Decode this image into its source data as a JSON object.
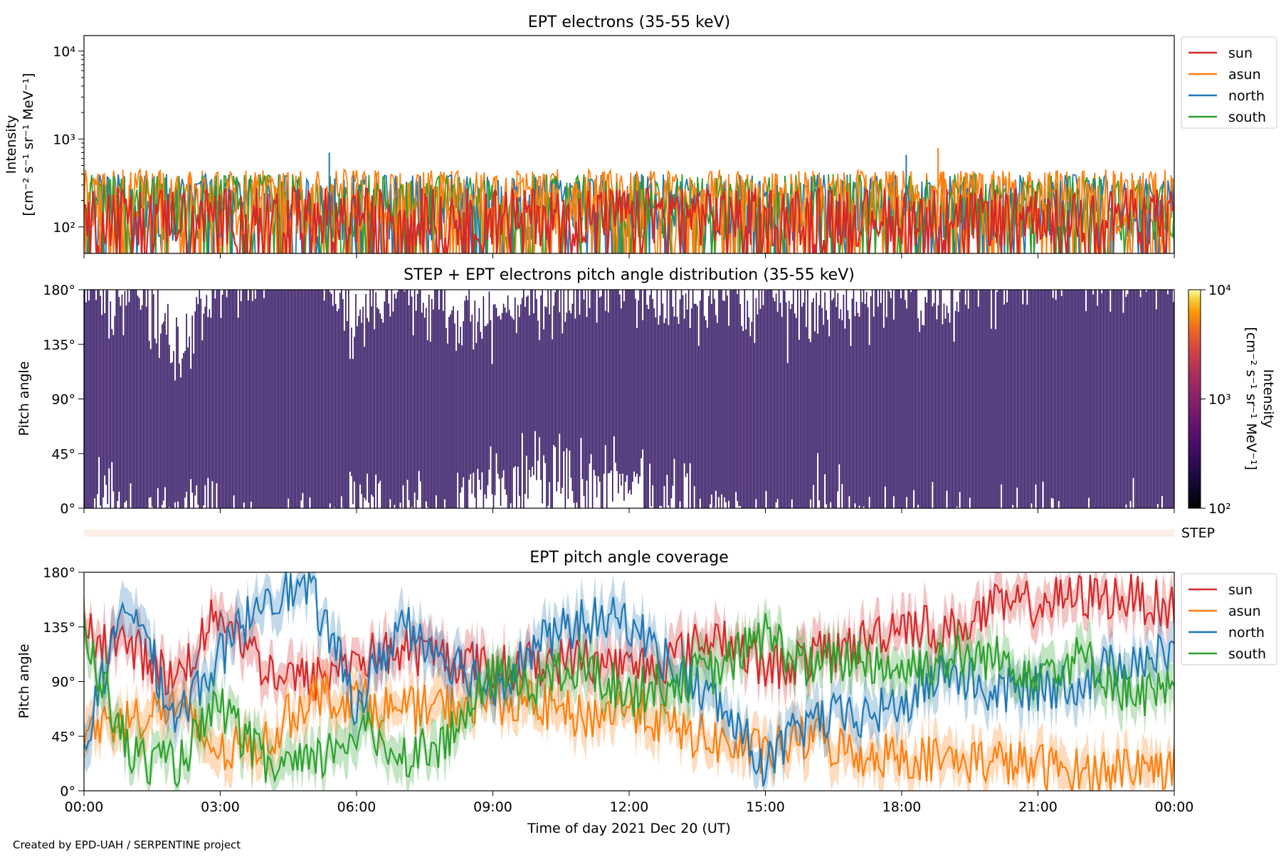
{
  "footer": {
    "credit": "Created by EPD-UAH / SERPENTINE project"
  },
  "colors": {
    "sun": "#d62728",
    "asun": "#ff7f0e",
    "north": "#1f77b4",
    "south": "#2ca02c",
    "pad": "#2e0f5f",
    "step_strip": "#fdeee8"
  },
  "chart_data": [
    {
      "type": "line",
      "title": "EPT electrons (35-55 keV)",
      "ylabel_line1": "Intensity",
      "ylabel_line2": "[cm⁻² s⁻¹ sr⁻¹ MeV⁻¹]",
      "yscale": "log",
      "ylim": [
        50,
        15000
      ],
      "yticks": [
        {
          "value": 100,
          "label": "10²"
        },
        {
          "value": 1000,
          "label": "10³"
        },
        {
          "value": 10000,
          "label": "10⁴"
        }
      ],
      "x_hours": [
        0,
        3,
        6,
        9,
        12,
        15,
        18,
        21,
        24
      ],
      "legend_position": "outside-right",
      "series": [
        {
          "name": "sun",
          "typical_range": [
            60,
            280
          ],
          "color_key": "sun"
        },
        {
          "name": "asun",
          "typical_range": [
            80,
            450
          ],
          "color_key": "asun"
        },
        {
          "name": "north",
          "typical_range": [
            70,
            400
          ],
          "color_key": "north"
        },
        {
          "name": "south",
          "typical_range": [
            70,
            400
          ],
          "color_key": "south"
        }
      ],
      "spikes": [
        {
          "x_hour": 5.4,
          "y": 700,
          "series": "north"
        },
        {
          "x_hour": 18.8,
          "y": 790,
          "series": "asun"
        },
        {
          "x_hour": 18.1,
          "y": 660,
          "series": "north"
        }
      ]
    },
    {
      "type": "heatmap",
      "title": "STEP + EPT electrons pitch angle distribution (35-55 keV)",
      "ylabel": "Pitch angle",
      "ylim": [
        0,
        180
      ],
      "yticks": [
        "0°",
        "45°",
        "90°",
        "135°",
        "180°"
      ],
      "x_hours": [
        0,
        3,
        6,
        9,
        12,
        15,
        18,
        21,
        24
      ],
      "colorbar": {
        "label_line1": "Intensity",
        "label_line2": "[cm⁻² s⁻¹ sr⁻¹ MeV⁻¹]",
        "scale": "log",
        "range": [
          100,
          10000
        ],
        "ticks": [
          "10²",
          "10³",
          "10⁴"
        ],
        "colormap": "inferno"
      }
    },
    {
      "type": "strip",
      "label": "STEP"
    },
    {
      "type": "line",
      "title": "EPT pitch angle coverage",
      "ylabel": "Pitch angle",
      "xlabel": "Time of day 2021 Dec 20 (UT)",
      "ylim": [
        0,
        180
      ],
      "yticks": [
        {
          "value": 0,
          "label": "0°"
        },
        {
          "value": 45,
          "label": "45°"
        },
        {
          "value": 90,
          "label": "90°"
        },
        {
          "value": 135,
          "label": "135°"
        },
        {
          "value": 180,
          "label": "180°"
        }
      ],
      "categories": [
        "00:00",
        "03:00",
        "06:00",
        "09:00",
        "12:00",
        "15:00",
        "18:00",
        "21:00",
        "00:00"
      ],
      "x_hours": [
        0,
        3,
        6,
        9,
        12,
        15,
        18,
        21,
        24
      ],
      "legend_position": "outside-right",
      "series": [
        {
          "name": "sun",
          "color_key": "sun",
          "x": [
            0,
            1,
            2,
            3,
            4,
            5,
            6,
            7,
            8,
            9,
            10,
            11,
            12,
            13,
            14,
            15,
            16,
            17,
            18,
            19,
            20,
            21,
            22,
            23,
            24
          ],
          "y": [
            130,
            120,
            90,
            150,
            100,
            90,
            110,
            115,
            110,
            100,
            105,
            110,
            100,
            110,
            130,
            100,
            110,
            120,
            140,
            130,
            150,
            155,
            160,
            160,
            150
          ]
        },
        {
          "name": "asun",
          "color_key": "asun",
          "x": [
            0,
            1,
            2,
            3,
            4,
            5,
            6,
            7,
            8,
            9,
            10,
            11,
            12,
            13,
            14,
            15,
            16,
            17,
            18,
            19,
            20,
            21,
            22,
            23,
            24
          ],
          "y": [
            50,
            60,
            70,
            30,
            40,
            80,
            75,
            65,
            70,
            75,
            70,
            60,
            70,
            50,
            40,
            30,
            45,
            30,
            30,
            25,
            25,
            20,
            15,
            20,
            20
          ]
        },
        {
          "name": "north",
          "color_key": "north",
          "x": [
            0,
            1,
            2,
            3,
            4,
            5,
            6,
            7,
            8,
            9,
            10,
            11,
            12,
            13,
            14,
            15,
            16,
            17,
            18,
            19,
            20,
            21,
            22,
            23,
            24
          ],
          "y": [
            40,
            160,
            60,
            110,
            165,
            165,
            70,
            140,
            110,
            85,
            120,
            140,
            140,
            100,
            70,
            20,
            60,
            60,
            70,
            100,
            80,
            85,
            90,
            110,
            110
          ]
        },
        {
          "name": "south",
          "color_key": "south",
          "x": [
            0,
            1,
            2,
            3,
            4,
            5,
            6,
            7,
            8,
            9,
            10,
            11,
            12,
            13,
            14,
            15,
            16,
            17,
            18,
            19,
            20,
            21,
            22,
            23,
            24
          ],
          "y": [
            130,
            30,
            20,
            70,
            20,
            20,
            50,
            30,
            40,
            95,
            90,
            100,
            80,
            90,
            100,
            130,
            100,
            110,
            100,
            110,
            110,
            100,
            110,
            80,
            80
          ]
        }
      ]
    }
  ]
}
